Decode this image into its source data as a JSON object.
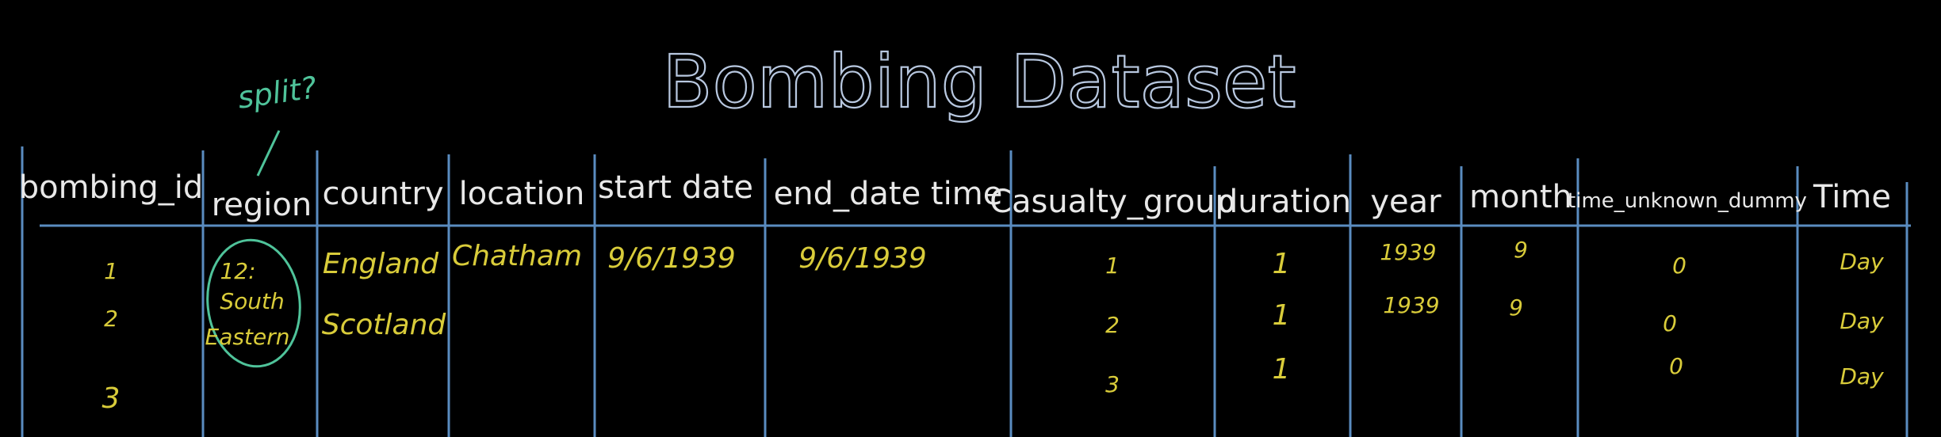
{
  "title": "Bombing Dataset",
  "annotation": "split?",
  "headers": {
    "bombing_id": "bombing_id",
    "region": "region",
    "country": "country",
    "location": "location",
    "start_date": "start date",
    "end_date_time": "end_date time",
    "casualty_group": "Casualty_group",
    "duration": "duration",
    "year": "year",
    "month": "month",
    "time_unknown_dummy": "time_unknown_dummy",
    "time": "Time"
  },
  "cells": {
    "id1": "1",
    "id2": "2",
    "id3": "3",
    "region_1": "12:",
    "region_2": "South",
    "region_3": "Eastern",
    "country1": "England",
    "country2": "Scotland",
    "location1": "Chatham",
    "start1": "9/6/1939",
    "end1": "9/6/1939",
    "cas1": "1",
    "cas2": "2",
    "cas3": "3",
    "dur1": "1",
    "dur2": "1",
    "dur3": "1",
    "year1": "1939",
    "year2": "1939",
    "month1": "9",
    "month2": "9",
    "tud1": "0",
    "tud2": "0",
    "tud3": "0",
    "time1": "Day",
    "time2": "Day",
    "time3": "Day"
  },
  "colors": {
    "background": "#000000",
    "grid": "#5a8cc0",
    "title": "#b8c8e0",
    "header_text": "#e8e8e8",
    "cell_text": "#d9cc3a",
    "annotation": "#4fc39a"
  }
}
